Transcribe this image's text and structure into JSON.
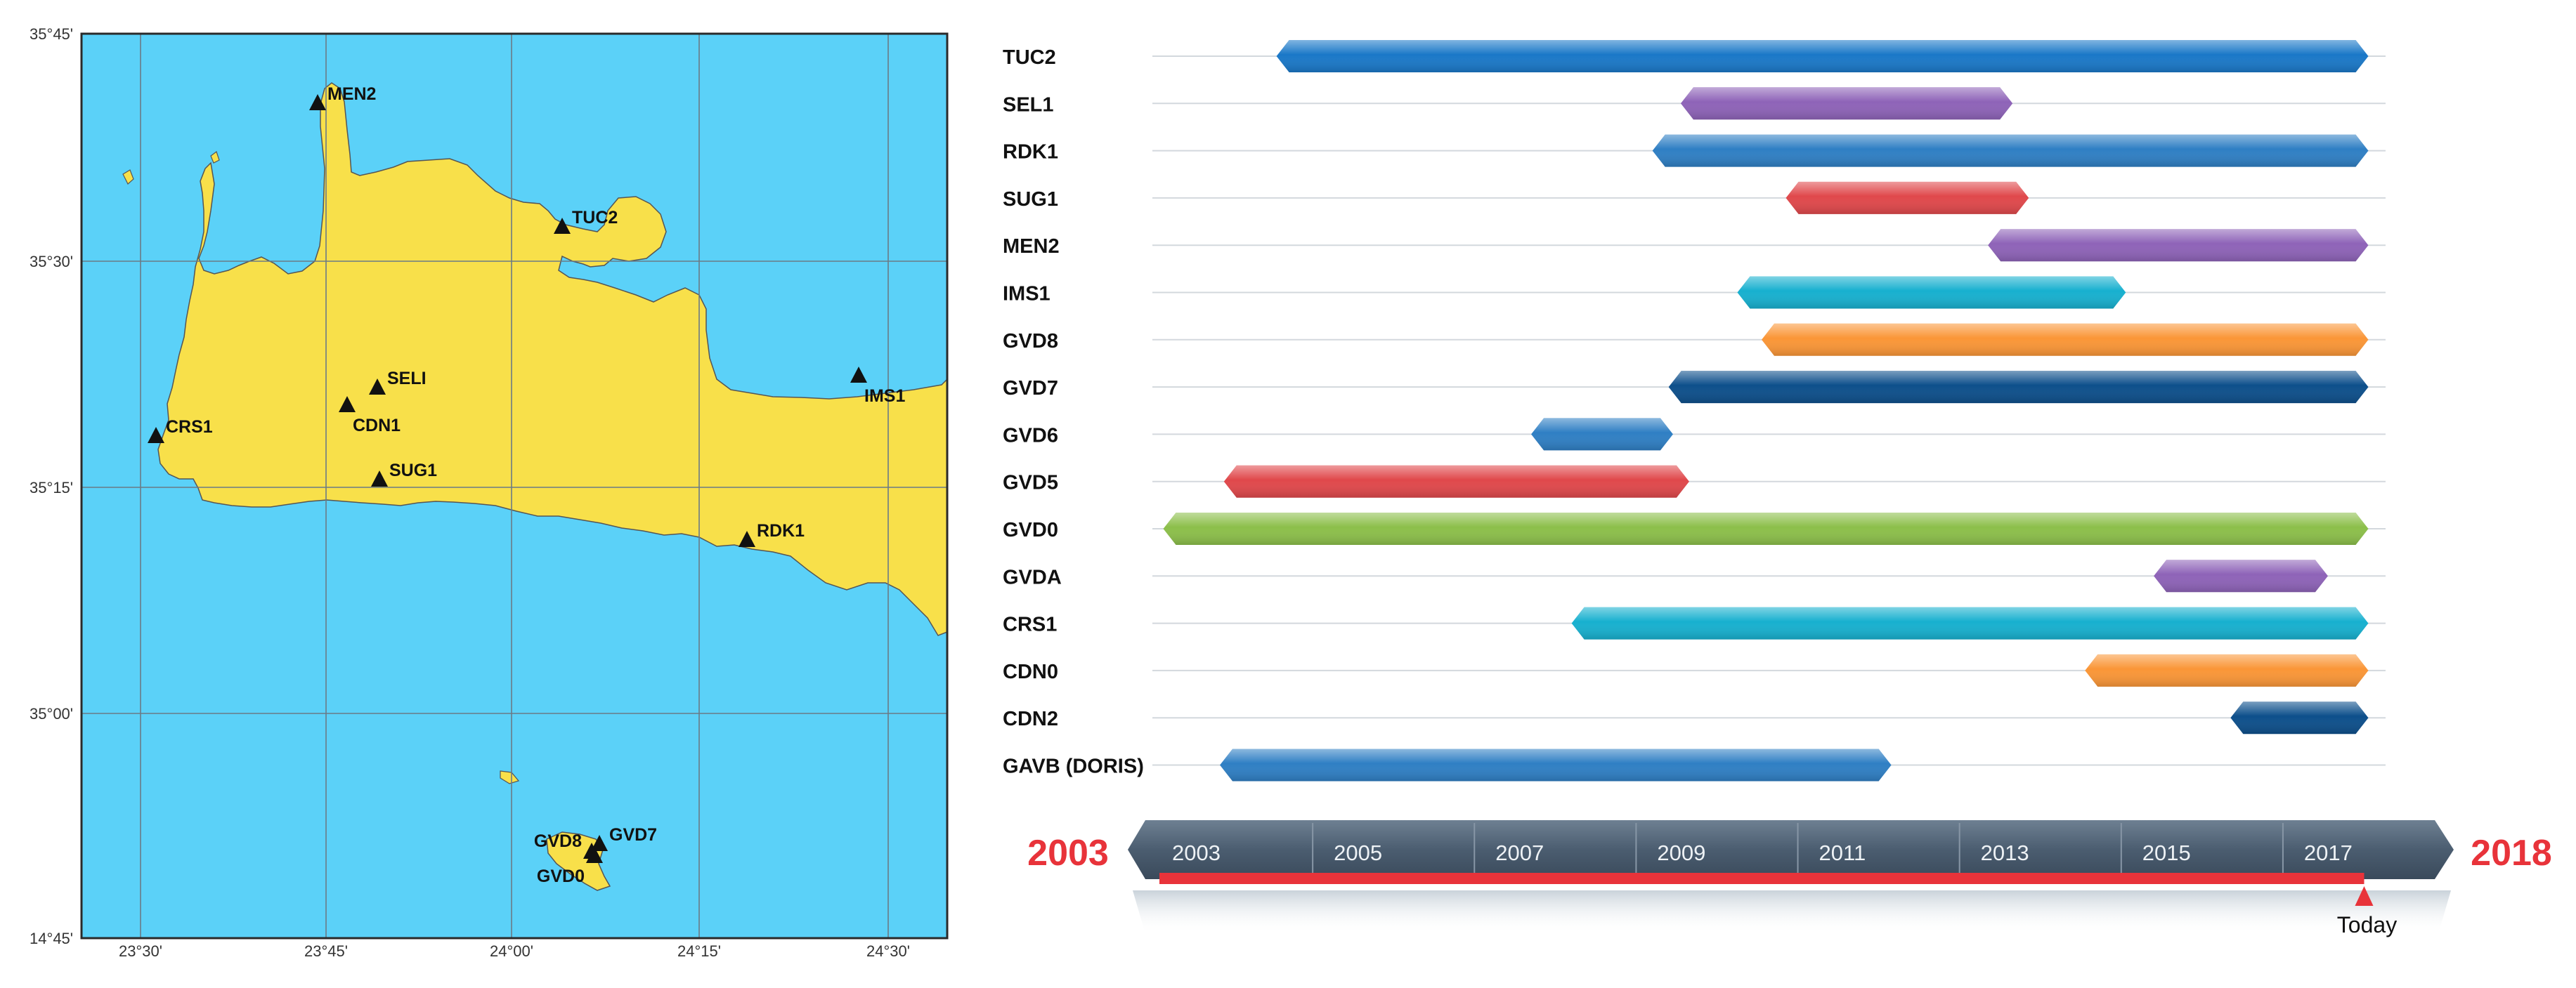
{
  "colors": {
    "sea": "#5BD1F8",
    "land": "#F8E04A",
    "grid": "#6B7A86",
    "frame": "#2A2A2A",
    "timeline_red": "#E8333A",
    "header_dark": "#55677A",
    "header_mid": "#3E4F61"
  },
  "map": {
    "lat_labels": [
      "35°45'",
      "35°30'",
      "35°15'",
      "35°00'",
      "14°45'"
    ],
    "lon_labels": [
      "23°30'",
      "23°45'",
      "24°00'",
      "24°15'",
      "24°30'"
    ],
    "stations": [
      {
        "name": "MEN2"
      },
      {
        "name": "TUC2"
      },
      {
        "name": "SELI"
      },
      {
        "name": "CDN1"
      },
      {
        "name": "CRS1"
      },
      {
        "name": "SUG1"
      },
      {
        "name": "IMS1"
      },
      {
        "name": "RDK1"
      },
      {
        "name": "GVD8"
      },
      {
        "name": "GVD7"
      },
      {
        "name": "GVD0"
      }
    ]
  },
  "timeline": {
    "start_label": "2003",
    "end_label": "2018",
    "year_labels": [
      "2003",
      "2005",
      "2007",
      "2009",
      "2011",
      "2013",
      "2015",
      "2017"
    ],
    "today_label": "Today"
  },
  "chart_data": {
    "type": "bar",
    "orientation": "horizontal-gantt",
    "x_range": [
      2003,
      2018
    ],
    "today": 2017.9,
    "series": [
      {
        "name": "TUC2",
        "start": 2004.5,
        "end": 2017.9,
        "color": "#1A78C8"
      },
      {
        "name": "SEL1",
        "start": 2009.5,
        "end": 2013.5,
        "color": "#8E63B8"
      },
      {
        "name": "RDK1",
        "start": 2009.15,
        "end": 2017.9,
        "color": "#2F7FC4"
      },
      {
        "name": "SUG1",
        "start": 2010.8,
        "end": 2013.7,
        "color": "#E0484B"
      },
      {
        "name": "MEN2",
        "start": 2013.3,
        "end": 2017.9,
        "color": "#8E63B8"
      },
      {
        "name": "IMS1",
        "start": 2010.2,
        "end": 2014.9,
        "color": "#17B0CF"
      },
      {
        "name": "GVD8",
        "start": 2010.5,
        "end": 2017.9,
        "color": "#FA9637"
      },
      {
        "name": "GVD7",
        "start": 2009.35,
        "end": 2017.9,
        "color": "#0D4F8B"
      },
      {
        "name": "GVD6",
        "start": 2007.65,
        "end": 2009.3,
        "color": "#2F7FC4"
      },
      {
        "name": "GVD5",
        "start": 2003.85,
        "end": 2009.5,
        "color": "#E0484B"
      },
      {
        "name": "GVD0",
        "start": 2003.1,
        "end": 2017.9,
        "color": "#8CBF4A"
      },
      {
        "name": "GVDA",
        "start": 2015.35,
        "end": 2017.4,
        "color": "#8E63B8"
      },
      {
        "name": "CRS1",
        "start": 2008.15,
        "end": 2017.9,
        "color": "#17B0CF"
      },
      {
        "name": "CDN0",
        "start": 2014.5,
        "end": 2017.9,
        "color": "#FA9637"
      },
      {
        "name": "CDN2",
        "start": 2016.3,
        "end": 2017.9,
        "color": "#0D4F8B"
      },
      {
        "name": "GAVB (DORIS)",
        "start": 2003.8,
        "end": 2012.0,
        "color": "#2F7FC4"
      }
    ]
  }
}
